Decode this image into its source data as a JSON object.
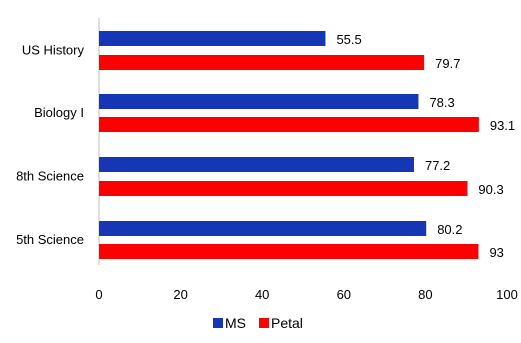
{
  "chart_data": {
    "type": "bar",
    "orientation": "horizontal",
    "categories": [
      "US History",
      "Biology I",
      "8th Science",
      "5th Science"
    ],
    "series": [
      {
        "name": "MS",
        "values": [
          55.5,
          78.3,
          77.2,
          80.2
        ],
        "color": "#1537B5"
      },
      {
        "name": "Petal",
        "values": [
          79.7,
          93.1,
          90.3,
          93
        ],
        "color": "#FF0000"
      }
    ],
    "value_labels": {
      "MS": [
        "55.5",
        "78.3",
        "77.2",
        "80.2"
      ],
      "Petal": [
        "79.7",
        "93.1",
        "90.3",
        "93"
      ]
    },
    "x_ticks": [
      "0",
      "20",
      "40",
      "60",
      "80",
      "100"
    ],
    "xlim": [
      0,
      100
    ],
    "title": "",
    "xlabel": "",
    "ylabel": "",
    "grid": false,
    "legend_position": "bottom",
    "axis_color": "#BFBFBF"
  }
}
